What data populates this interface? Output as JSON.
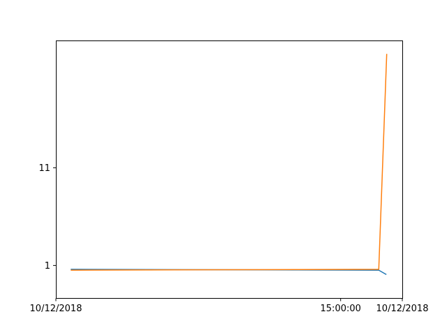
{
  "chart_data": {
    "type": "line",
    "title": "",
    "xlabel": "",
    "ylabel": "",
    "grid": false,
    "legend": "none",
    "x_range": [
      0,
      1
    ],
    "x_ticks": [
      {
        "x": 0.0,
        "label": "10/12/2018"
      },
      {
        "x": 0.822,
        "label": "15:00:00"
      },
      {
        "x": 1.0,
        "label": "10/12/2018"
      }
    ],
    "y_scale": "log",
    "y_range": [
      0.45,
      250
    ],
    "y_ticks": [
      {
        "y": 1,
        "label": "1"
      },
      {
        "y": 11,
        "label": "11"
      }
    ],
    "series": [
      {
        "color": "#1f77b4",
        "points": [
          [
            0.043,
            0.909
          ],
          [
            0.932,
            0.891
          ],
          [
            0.954,
            0.8
          ]
        ]
      },
      {
        "color": "#ff7f0e",
        "points": [
          [
            0.043,
            0.891
          ],
          [
            0.932,
            0.909
          ],
          [
            0.955,
            180
          ]
        ]
      }
    ]
  }
}
